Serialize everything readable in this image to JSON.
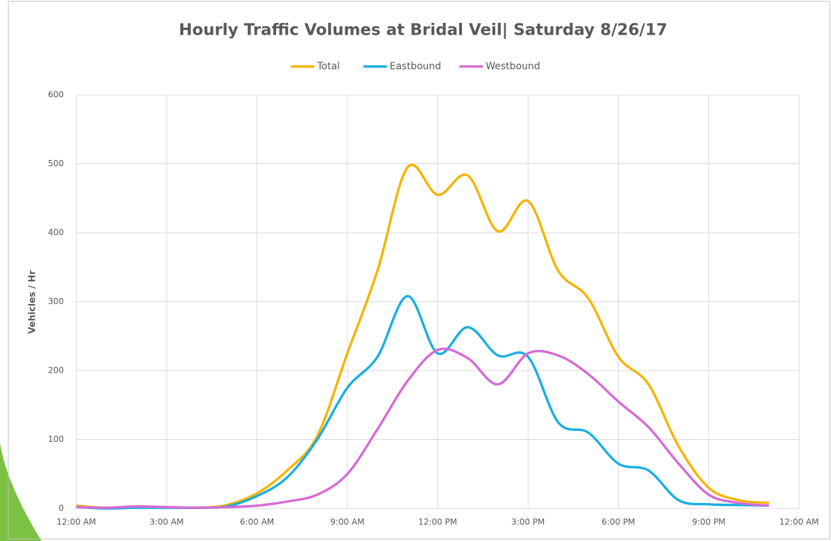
{
  "chart_data": {
    "type": "line",
    "title": "Hourly Traffic Volumes at Bridal Veil| Saturday 8/26/17",
    "y_label": "Vehicles / Hr",
    "x": [
      0,
      1,
      2,
      3,
      4,
      5,
      6,
      7,
      8,
      9,
      10,
      11,
      12,
      13,
      14,
      15,
      16,
      17,
      18,
      19,
      20,
      21,
      22,
      23
    ],
    "series": [
      {
        "name": "Total",
        "color": "#f5b400",
        "values": [
          4,
          1,
          3,
          2,
          1,
          5,
          22,
          55,
          105,
          225,
          345,
          495,
          455,
          483,
          402,
          446,
          345,
          305,
          220,
          180,
          90,
          30,
          12,
          8
        ]
      },
      {
        "name": "Eastbound",
        "color": "#1aafe0",
        "values": [
          2,
          0,
          1,
          1,
          1,
          3,
          18,
          45,
          100,
          175,
          220,
          308,
          225,
          263,
          222,
          220,
          125,
          110,
          65,
          55,
          12,
          6,
          5,
          4
        ]
      },
      {
        "name": "Westbound",
        "color": "#d66bd6",
        "values": [
          2,
          1,
          3,
          2,
          1,
          2,
          4,
          10,
          20,
          50,
          115,
          185,
          230,
          218,
          180,
          225,
          222,
          195,
          155,
          118,
          65,
          20,
          8,
          4
        ]
      }
    ],
    "xlim": [
      0,
      24
    ],
    "xticks": [
      {
        "value": 0,
        "label": "12:00 AM"
      },
      {
        "value": 3,
        "label": "3:00 AM"
      },
      {
        "value": 6,
        "label": "6:00 AM"
      },
      {
        "value": 9,
        "label": "9:00 AM"
      },
      {
        "value": 12,
        "label": "12:00 PM"
      },
      {
        "value": 15,
        "label": "3:00 PM"
      },
      {
        "value": 18,
        "label": "6:00 PM"
      },
      {
        "value": 21,
        "label": "9:00 PM"
      },
      {
        "value": 24,
        "label": "12:00 AM"
      }
    ],
    "ylim": [
      0,
      600
    ],
    "yticks": [
      0,
      100,
      200,
      300,
      400,
      500,
      600
    ],
    "grid": true,
    "legend": "top"
  }
}
